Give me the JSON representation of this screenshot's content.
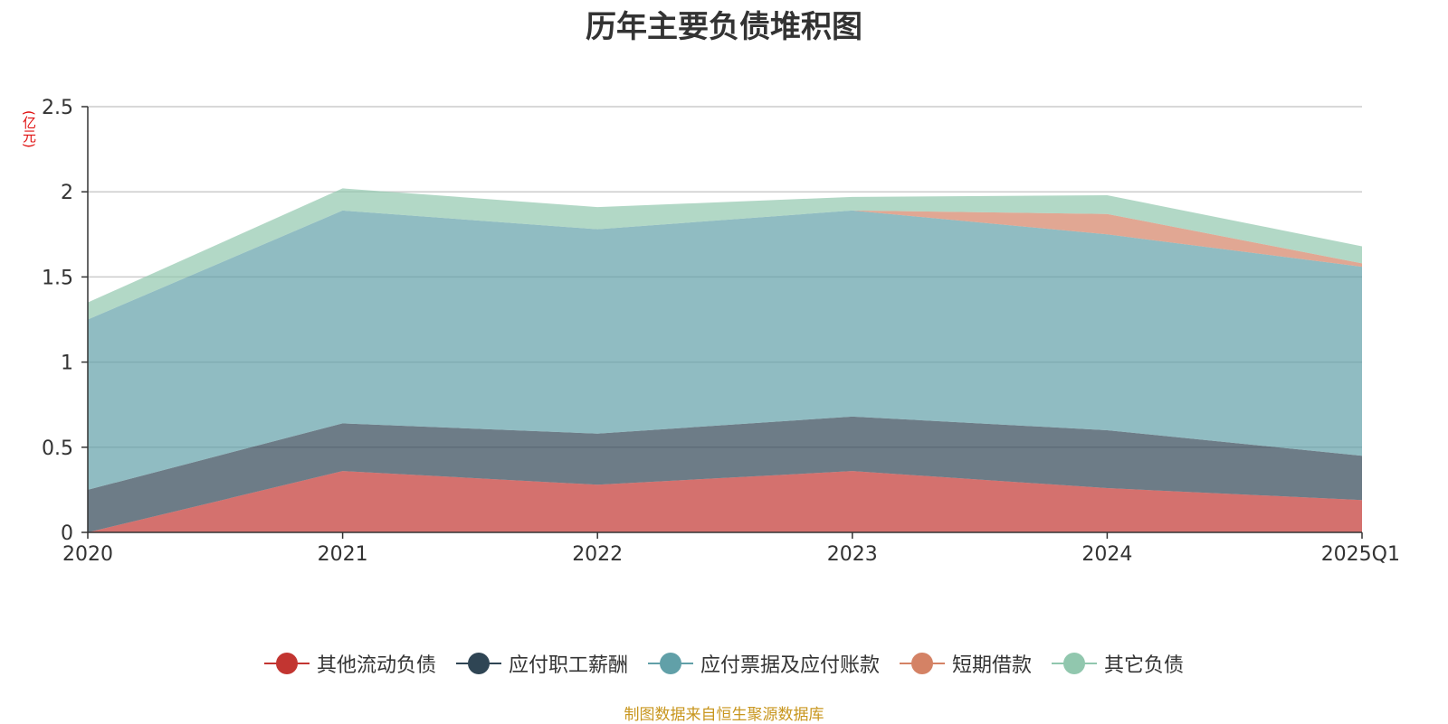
{
  "chart_data": {
    "type": "area",
    "stacked": true,
    "title": "历年主要负债堆积图",
    "y_unit": "(亿元)",
    "source": "制图数据来自恒生聚源数据库",
    "x": [
      "2020",
      "2021",
      "2022",
      "2023",
      "2024",
      "2025Q1"
    ],
    "y_ticks": [
      "0",
      "0.5",
      "1",
      "1.5",
      "2",
      "2.5"
    ],
    "ylim": [
      0,
      2.5
    ],
    "grid": true,
    "legend_position": "bottom",
    "series": [
      {
        "name": "其他流动负债",
        "color": "#c23531",
        "values": [
          0.0,
          0.36,
          0.28,
          0.36,
          0.26,
          0.19
        ]
      },
      {
        "name": "应付职工薪酬",
        "color": "#2f4554",
        "values": [
          0.25,
          0.28,
          0.3,
          0.32,
          0.34,
          0.26
        ]
      },
      {
        "name": "应付票据及应付账款",
        "color": "#61a0a8",
        "values": [
          1.0,
          1.25,
          1.2,
          1.21,
          1.15,
          1.11
        ]
      },
      {
        "name": "短期借款",
        "color": "#d48265",
        "values": [
          0.0,
          0.0,
          0.0,
          0.0,
          0.12,
          0.02
        ]
      },
      {
        "name": "其它负债",
        "color": "#91c7ae",
        "values": [
          0.1,
          0.13,
          0.13,
          0.08,
          0.11,
          0.1
        ]
      }
    ]
  }
}
